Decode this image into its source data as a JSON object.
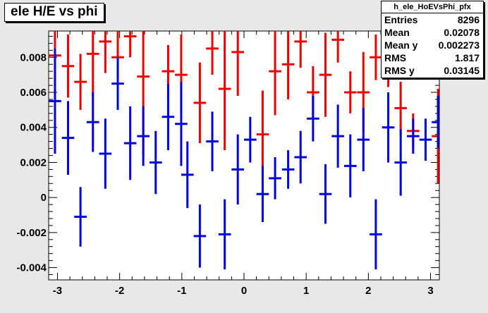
{
  "title": "ele H/E vs phi",
  "stats": {
    "name": "h_ele_HoEVsPhi_pfx",
    "rows": [
      {
        "label": "Entries",
        "value": "8296"
      },
      {
        "label": "Mean",
        "value": "0.02078"
      },
      {
        "label": "Mean y",
        "value": "0.002273"
      },
      {
        "label": "RMS",
        "value": "1.817"
      },
      {
        "label": "RMS y",
        "value": "0.03145"
      }
    ]
  },
  "chart_data": {
    "type": "scatter",
    "title": "ele H/E vs phi",
    "xlabel": "",
    "ylabel": "",
    "xlim": [
      -3.14159,
      3.14159
    ],
    "ylim": [
      -0.0047,
      0.0095
    ],
    "grid": false,
    "x_ticks": [
      -3,
      -2,
      -1,
      0,
      1,
      2,
      3
    ],
    "x_tick_labels": [
      "-3",
      "-2",
      "-1",
      "0",
      "1",
      "2",
      "3"
    ],
    "y_ticks": [
      -0.004,
      -0.002,
      0,
      0.002,
      0.004,
      0.006,
      0.008
    ],
    "y_tick_labels": [
      "-0.004",
      "-0.002",
      "0",
      "0.002",
      "0.004",
      "0.006",
      "0.008"
    ],
    "series": [
      {
        "color": "#ee0000",
        "points": [
          {
            "x": -3.04,
            "y": 0.0081,
            "err": 0.0015
          },
          {
            "x": -2.83,
            "y": 0.0075,
            "err": 0.0018
          },
          {
            "x": -2.63,
            "y": 0.0066,
            "err": 0.0016
          },
          {
            "x": -2.43,
            "y": 0.0082,
            "err": 0.0024
          },
          {
            "x": -2.23,
            "y": 0.0089,
            "err": 0.0018
          },
          {
            "x": -2.03,
            "y": 0.008,
            "err": 0.0018
          },
          {
            "x": -1.83,
            "y": 0.0092,
            "err": 0.0012
          },
          {
            "x": -1.62,
            "y": 0.0069,
            "err": 0.0045
          },
          {
            "x": -1.22,
            "y": 0.0072,
            "err": 0.0015
          },
          {
            "x": -1.01,
            "y": 0.007,
            "err": 0.0023
          },
          {
            "x": -0.71,
            "y": 0.0054,
            "err": 0.0023
          },
          {
            "x": -0.51,
            "y": 0.0085,
            "err": 0.0015
          },
          {
            "x": -0.31,
            "y": 0.0062,
            "err": 0.0035
          },
          {
            "x": -0.1,
            "y": 0.0083,
            "err": 0.0025
          },
          {
            "x": 0.3,
            "y": 0.0036,
            "err": 0.0025
          },
          {
            "x": 0.5,
            "y": 0.0072,
            "err": 0.0025
          },
          {
            "x": 0.71,
            "y": 0.0076,
            "err": 0.002
          },
          {
            "x": 0.91,
            "y": 0.0089,
            "err": 0.0015
          },
          {
            "x": 1.11,
            "y": 0.006,
            "err": 0.0015
          },
          {
            "x": 1.31,
            "y": 0.007,
            "err": 0.0024
          },
          {
            "x": 1.51,
            "y": 0.009,
            "err": 0.0013
          },
          {
            "x": 1.71,
            "y": 0.006,
            "err": 0.0012
          },
          {
            "x": 1.92,
            "y": 0.006,
            "err": 0.0023
          },
          {
            "x": 2.12,
            "y": 0.008,
            "err": 0.0013
          },
          {
            "x": 2.32,
            "y": 0.008,
            "err": 0.0017
          },
          {
            "x": 2.52,
            "y": 0.0051,
            "err": 0.0015
          },
          {
            "x": 2.72,
            "y": 0.0038,
            "err": 0.001
          },
          {
            "x": 2.92,
            "y": 0.0084,
            "err": 0.0015
          },
          {
            "x": 3.12,
            "y": 0.0035,
            "err": 0.0027
          }
        ]
      },
      {
        "color": "#0000dd",
        "points": [
          {
            "x": -3.04,
            "y": 0.0055,
            "err": 0.003
          },
          {
            "x": -2.83,
            "y": 0.0034,
            "err": 0.0021
          },
          {
            "x": -2.63,
            "y": -0.0011,
            "err": 0.0017
          },
          {
            "x": -2.43,
            "y": 0.0043,
            "err": 0.0017
          },
          {
            "x": -2.23,
            "y": 0.0025,
            "err": 0.002
          },
          {
            "x": -2.03,
            "y": 0.0065,
            "err": 0.0015
          },
          {
            "x": -1.83,
            "y": 0.0031,
            "err": 0.0021
          },
          {
            "x": -1.62,
            "y": 0.0035,
            "err": 0.0017
          },
          {
            "x": -1.42,
            "y": 0.002,
            "err": 0.0018
          },
          {
            "x": -1.22,
            "y": 0.0046,
            "err": 0.0019
          },
          {
            "x": -1.01,
            "y": 0.0042,
            "err": 0.0024
          },
          {
            "x": -0.91,
            "y": 0.0013,
            "err": 0.0019
          },
          {
            "x": -0.71,
            "y": -0.0022,
            "err": 0.0018
          },
          {
            "x": -0.51,
            "y": 0.0032,
            "err": 0.0017
          },
          {
            "x": -0.31,
            "y": -0.0021,
            "err": 0.002
          },
          {
            "x": -0.1,
            "y": 0.0016,
            "err": 0.002
          },
          {
            "x": 0.1,
            "y": 0.0033,
            "err": 0.0013
          },
          {
            "x": 0.3,
            "y": 0.0002,
            "err": 0.0016
          },
          {
            "x": 0.5,
            "y": 0.0011,
            "err": 0.0012
          },
          {
            "x": 0.71,
            "y": 0.0016,
            "err": 0.0011
          },
          {
            "x": 0.91,
            "y": 0.0023,
            "err": 0.0015
          },
          {
            "x": 1.11,
            "y": 0.0045,
            "err": 0.0013
          },
          {
            "x": 1.31,
            "y": 0.0002,
            "err": 0.0017
          },
          {
            "x": 1.51,
            "y": 0.0035,
            "err": 0.0018
          },
          {
            "x": 1.71,
            "y": 0.0018,
            "err": 0.0018
          },
          {
            "x": 1.92,
            "y": 0.0033,
            "err": 0.0018
          },
          {
            "x": 2.12,
            "y": -0.0021,
            "err": 0.002
          },
          {
            "x": 2.32,
            "y": 0.004,
            "err": 0.002
          },
          {
            "x": 2.52,
            "y": 0.002,
            "err": 0.0019
          },
          {
            "x": 2.72,
            "y": 0.0035,
            "err": 0.001
          },
          {
            "x": 2.92,
            "y": 0.0033,
            "err": 0.0012
          },
          {
            "x": 3.12,
            "y": 0.0043,
            "err": 0.0015
          }
        ]
      }
    ]
  }
}
